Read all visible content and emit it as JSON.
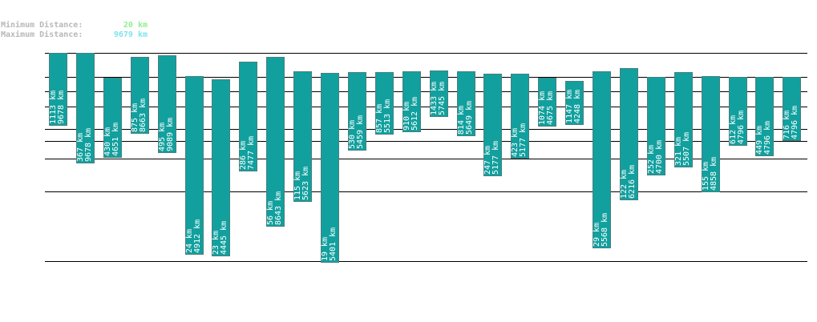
{
  "legend": {
    "min_label": "Minimum Distance:",
    "min_value": "20 km",
    "max_label": "Maximum Distance:",
    "max_value": "9679 km"
  },
  "colors": {
    "bar": "#11a09e",
    "bar_stroke": "#4a7f7f",
    "grid": "#000000",
    "label": "#ffffff",
    "min": "#90ee90",
    "max": "#7fe3ec"
  },
  "chart_data": {
    "type": "bar",
    "title": "",
    "xlabel": "",
    "ylabel": "",
    "description": "Floating bars, each spanning a minimum distance to a maximum distance (km)",
    "ylim": [
      20,
      9679
    ],
    "series": [
      {
        "name": "min",
        "values": [
          1113,
          367,
          430,
          875,
          495,
          24,
          23,
          286,
          56,
          115,
          19,
          530,
          857,
          910,
          1433,
          814,
          247,
          423,
          1074,
          1147,
          29,
          122,
          252,
          321,
          155,
          612,
          449,
          716
        ]
      },
      {
        "name": "max",
        "values": [
          9678,
          9678,
          4651,
          8663,
          9089,
          4912,
          4445,
          7477,
          8643,
          5623,
          5401,
          5459,
          5513,
          5612,
          5745,
          5649,
          5177,
          5177,
          4675,
          4248,
          5568,
          6216,
          4700,
          5507,
          4858,
          4796,
          4796,
          4796
        ]
      }
    ],
    "bars": [
      {
        "min": "1113 km",
        "max": "9678 km"
      },
      {
        "min": "367 km",
        "max": "9678 km"
      },
      {
        "min": "430 km",
        "max": "4651 km"
      },
      {
        "min": "875 km",
        "max": "8663 km"
      },
      {
        "min": "495 km",
        "max": "9089 km"
      },
      {
        "min": "24 km",
        "max": "4912 km"
      },
      {
        "min": "23 km",
        "max": "4445 km"
      },
      {
        "min": "286 km",
        "max": "7477 km"
      },
      {
        "min": "56 km",
        "max": "8643 km"
      },
      {
        "min": "115 km",
        "max": "5623 km"
      },
      {
        "min": "19 km",
        "max": "5401 km"
      },
      {
        "min": "530 km",
        "max": "5459 km"
      },
      {
        "min": "857 km",
        "max": "5513 km"
      },
      {
        "min": "910 km",
        "max": "5612 km"
      },
      {
        "min": "1433 km",
        "max": "5745 km"
      },
      {
        "min": "814 km",
        "max": "5649 km"
      },
      {
        "min": "247 km",
        "max": "5177 km"
      },
      {
        "min": "423 km",
        "max": "5177 km"
      },
      {
        "min": "1074 km",
        "max": "4675 km"
      },
      {
        "min": "1147 km",
        "max": "4248 km"
      },
      {
        "min": "29 km",
        "max": "5568 km"
      },
      {
        "min": "122 km",
        "max": "6216 km"
      },
      {
        "min": "252 km",
        "max": "4700 km"
      },
      {
        "min": "321 km",
        "max": "5507 km"
      },
      {
        "min": "155 km",
        "max": "4858 km"
      },
      {
        "min": "612 km",
        "max": "4796 km"
      },
      {
        "min": "449 km",
        "max": "4796 km"
      },
      {
        "min": "716 km",
        "max": "4796 km"
      }
    ],
    "grid_lines_km": [
      9679,
      4700,
      3100,
      1950,
      1020,
      700,
      420,
      160,
      20
    ]
  }
}
